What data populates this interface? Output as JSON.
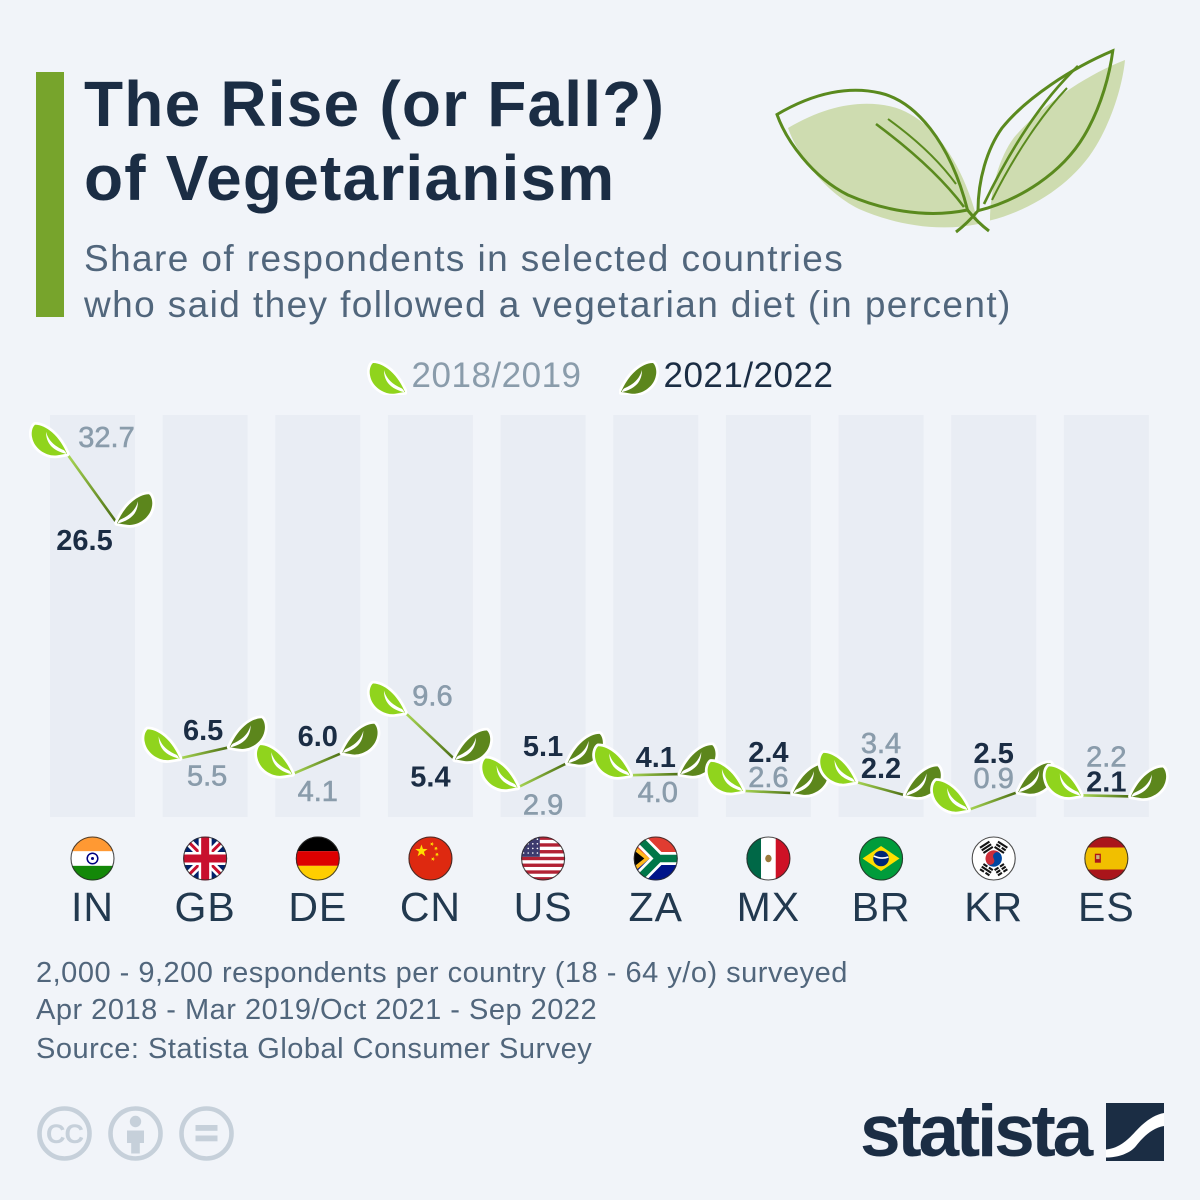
{
  "page": {
    "background": "#f1f4f9",
    "accent_color": "#77a42c"
  },
  "header": {
    "title_line1": "The Rise (or Fall?)",
    "title_line2": "of Vegetarianism",
    "subtitle_line1": "Share of respondents in selected countries",
    "subtitle_line2": "who said they followed a vegetarian diet (in percent)"
  },
  "legend": {
    "items": [
      {
        "label": "2018/2019",
        "leaf_color": "#90d41d",
        "text_color": "#8a9cab"
      },
      {
        "label": "2021/2022",
        "leaf_color": "#5c861c",
        "text_color": "#1b2d44"
      }
    ]
  },
  "chart_data": {
    "type": "line",
    "title": "Share of vegetarians per country, 2018/2019 vs 2021/2022 (percent)",
    "categories": [
      "IN",
      "GB",
      "DE",
      "CN",
      "US",
      "ZA",
      "MX",
      "BR",
      "KR",
      "ES"
    ],
    "series": [
      {
        "name": "2018/2019",
        "values": [
          32.7,
          5.5,
          4.1,
          9.6,
          2.9,
          4.0,
          2.6,
          3.4,
          0.9,
          2.2
        ],
        "marker_color": "#90d41d",
        "label_color": "#8a9cab"
      },
      {
        "name": "2021/2022",
        "values": [
          26.5,
          6.5,
          6.0,
          5.4,
          5.1,
          4.1,
          2.4,
          2.2,
          2.5,
          2.1
        ],
        "marker_color": "#5c861c",
        "label_color": "#1b2d44"
      }
    ],
    "ylim": [
      0,
      36
    ],
    "grid": false,
    "legend_position": "top",
    "band_color": "#e9edf4",
    "label_layout": [
      "split",
      "split",
      "split",
      "split",
      "split",
      "split",
      "stack21",
      "stack18",
      "stack21",
      "stack18"
    ],
    "label_dx_2018": [
      14,
      2,
      0,
      2,
      0,
      2,
      0,
      0,
      0,
      0
    ],
    "label_dx_2021": [
      -8,
      -2,
      0,
      0,
      0,
      0,
      0,
      0,
      0,
      0
    ]
  },
  "footer": {
    "note_line1": "2,000 - 9,200 respondents per country (18 - 64 y/o) surveyed",
    "note_line2": "Apr 2018 - Mar 2019/Oct 2021 - Sep 2022",
    "source": "Source: Statista Global Consumer Survey"
  },
  "branding": {
    "logo_text": "statista"
  },
  "license": {
    "icons": [
      "cc-icon",
      "attribution-person-icon",
      "no-derivatives-equals-icon"
    ],
    "color": "#c6d0da"
  }
}
